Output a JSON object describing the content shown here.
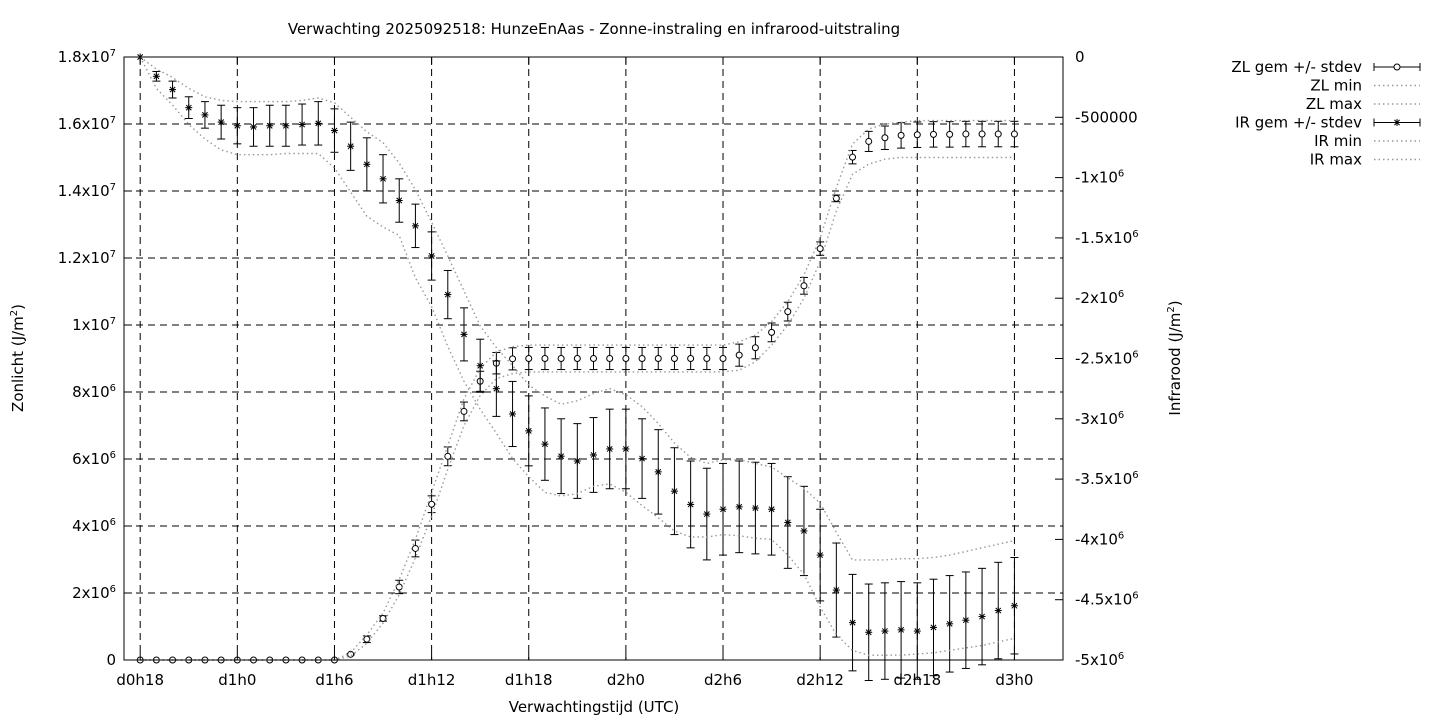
{
  "chart_data": {
    "type": "line",
    "title": "Verwachting 2025092518: HunzeEnAas - Zonne-instraling en infrarood-uitstraling",
    "xlabel": "Verwachtingstijd (UTC)",
    "ylabel": "Zonlicht (J/m",
    "ylabel_sup": "2",
    "ylabel_end": ")",
    "y2label": "Infrarood (J/m",
    "y2label_sup": "2",
    "y2label_end": ")",
    "x_hours": [
      18,
      19,
      20,
      21,
      22,
      23,
      24,
      25,
      26,
      27,
      28,
      29,
      30,
      31,
      32,
      33,
      34,
      35,
      36,
      37,
      38,
      39,
      40,
      41,
      42,
      43,
      44,
      45,
      46,
      47,
      48,
      49,
      50,
      51,
      52,
      53,
      54,
      55,
      56,
      57,
      58,
      59,
      60,
      61,
      62,
      63,
      64,
      65,
      66,
      67,
      68,
      69,
      70,
      71,
      72
    ],
    "xlim": [
      17,
      75
    ],
    "xticks": [
      {
        "value": 18,
        "label": "d0h18"
      },
      {
        "value": 24,
        "label": "d1h0"
      },
      {
        "value": 30,
        "label": "d1h6"
      },
      {
        "value": 36,
        "label": "d1h12"
      },
      {
        "value": 42,
        "label": "d1h18"
      },
      {
        "value": 48,
        "label": "d2h0"
      },
      {
        "value": 54,
        "label": "d2h6"
      },
      {
        "value": 60,
        "label": "d2h12"
      },
      {
        "value": 66,
        "label": "d2h18"
      },
      {
        "value": 72,
        "label": "d3h0"
      }
    ],
    "ylim": [
      0,
      18000000
    ],
    "yticks": [
      {
        "value": 0,
        "mant": "0",
        "sup": ""
      },
      {
        "value": 2000000,
        "mant": "2x10",
        "sup": "6"
      },
      {
        "value": 4000000,
        "mant": "4x10",
        "sup": "6"
      },
      {
        "value": 6000000,
        "mant": "6x10",
        "sup": "6"
      },
      {
        "value": 8000000,
        "mant": "8x10",
        "sup": "6"
      },
      {
        "value": 10000000,
        "mant": "1x10",
        "sup": "7"
      },
      {
        "value": 12000000,
        "mant": "1.2x10",
        "sup": "7"
      },
      {
        "value": 14000000,
        "mant": "1.4x10",
        "sup": "7"
      },
      {
        "value": 16000000,
        "mant": "1.6x10",
        "sup": "7"
      },
      {
        "value": 18000000,
        "mant": "1.8x10",
        "sup": "7"
      }
    ],
    "y2lim": [
      -5000000,
      0
    ],
    "y2ticks": [
      {
        "value": 0,
        "mant": "0",
        "sup": ""
      },
      {
        "value": -500000,
        "mant": "-500000",
        "sup": ""
      },
      {
        "value": -1000000,
        "mant": "-1x10",
        "sup": "6"
      },
      {
        "value": -1500000,
        "mant": "-1.5x10",
        "sup": "6"
      },
      {
        "value": -2000000,
        "mant": "-2x10",
        "sup": "6"
      },
      {
        "value": -2500000,
        "mant": "-2.5x10",
        "sup": "6"
      },
      {
        "value": -3000000,
        "mant": "-3x10",
        "sup": "6"
      },
      {
        "value": -3500000,
        "mant": "-3.5x10",
        "sup": "6"
      },
      {
        "value": -4000000,
        "mant": "-4x10",
        "sup": "6"
      },
      {
        "value": -4500000,
        "mant": "-4.5x10",
        "sup": "6"
      },
      {
        "value": -5000000,
        "mant": "-5x10",
        "sup": "6"
      }
    ],
    "grid": true,
    "legend_position": "top-right outside",
    "series": [
      {
        "name": "ZL gem +/- stdev",
        "axis": "y1",
        "style": "errorbars-circle",
        "mean": [
          0,
          0,
          0,
          0,
          0,
          0,
          0,
          0,
          0,
          0,
          0,
          0,
          0,
          170000,
          620000,
          1240000,
          2180000,
          3330000,
          4650000,
          6080000,
          7420000,
          8320000,
          8860000,
          8990000,
          9000000,
          9000000,
          9000000,
          9000000,
          9000000,
          9000000,
          9000000,
          9000000,
          9000000,
          9000000,
          9000000,
          9000000,
          9000000,
          9100000,
          9320000,
          9780000,
          10400000,
          11170000,
          12280000,
          13780000,
          15010000,
          15480000,
          15590000,
          15660000,
          15680000,
          15690000,
          15690000,
          15700000,
          15700000,
          15700000,
          15700000
        ],
        "stdev": [
          0,
          0,
          0,
          0,
          0,
          0,
          0,
          0,
          0,
          0,
          0,
          0,
          0,
          20000,
          100000,
          80000,
          200000,
          250000,
          250000,
          280000,
          280000,
          300000,
          320000,
          330000,
          330000,
          330000,
          330000,
          330000,
          330000,
          330000,
          330000,
          330000,
          330000,
          330000,
          330000,
          330000,
          330000,
          330000,
          330000,
          280000,
          280000,
          250000,
          200000,
          100000,
          200000,
          300000,
          350000,
          380000,
          380000,
          380000,
          380000,
          380000,
          380000,
          380000,
          380000
        ]
      },
      {
        "name": "ZL min",
        "axis": "y1",
        "style": "dotted",
        "values": [
          0,
          0,
          0,
          0,
          0,
          0,
          0,
          0,
          0,
          0,
          0,
          0,
          0,
          120000,
          500000,
          1100000,
          1950000,
          3050000,
          4300000,
          5700000,
          7000000,
          7900000,
          8400000,
          8550000,
          8600000,
          8600000,
          8600000,
          8600000,
          8600000,
          8600000,
          8600000,
          8600000,
          8600000,
          8600000,
          8600000,
          8600000,
          8600000,
          8650000,
          8900000,
          9400000,
          10000000,
          10800000,
          11900000,
          13400000,
          14500000,
          14800000,
          14950000,
          15000000,
          15000000,
          15000000,
          15000000,
          15000000,
          15000000,
          15000000,
          15000000
        ]
      },
      {
        "name": "ZL max",
        "axis": "y1",
        "style": "dotted",
        "values": [
          0,
          0,
          0,
          0,
          0,
          0,
          0,
          0,
          0,
          0,
          0,
          0,
          0,
          220000,
          750000,
          1400000,
          2400000,
          3600000,
          5000000,
          6400000,
          7800000,
          8700000,
          9200000,
          9350000,
          9400000,
          9400000,
          9400000,
          9400000,
          9400000,
          9400000,
          9400000,
          9400000,
          9400000,
          9400000,
          9400000,
          9400000,
          9400000,
          9500000,
          9700000,
          10100000,
          10700000,
          11500000,
          12600000,
          14100000,
          15400000,
          15850000,
          16000000,
          16050000,
          16100000,
          16100000,
          16100000,
          16100000,
          16100000,
          16100000,
          16100000
        ]
      },
      {
        "name": "IR gem +/- stdev",
        "axis": "y2",
        "style": "errorbars-star",
        "mean": [
          0,
          -160000,
          -270000,
          -420000,
          -480000,
          -540000,
          -570000,
          -580000,
          -570000,
          -570000,
          -560000,
          -550000,
          -610000,
          -740000,
          -890000,
          -1010000,
          -1190000,
          -1400000,
          -1650000,
          -1970000,
          -2300000,
          -2560000,
          -2750000,
          -2960000,
          -3100000,
          -3210000,
          -3310000,
          -3350000,
          -3300000,
          -3250000,
          -3250000,
          -3330000,
          -3440000,
          -3600000,
          -3710000,
          -3790000,
          -3750000,
          -3730000,
          -3740000,
          -3750000,
          -3860000,
          -3930000,
          -4130000,
          -4420000,
          -4690000,
          -4770000,
          -4760000,
          -4750000,
          -4760000,
          -4730000,
          -4700000,
          -4670000,
          -4640000,
          -4590000,
          -4550000
        ],
        "stdev": [
          0,
          40000,
          70000,
          90000,
          110000,
          140000,
          150000,
          160000,
          170000,
          170000,
          170000,
          180000,
          180000,
          200000,
          220000,
          200000,
          180000,
          180000,
          200000,
          200000,
          220000,
          220000,
          230000,
          270000,
          290000,
          300000,
          310000,
          310000,
          310000,
          330000,
          330000,
          330000,
          350000,
          360000,
          360000,
          380000,
          380000,
          380000,
          380000,
          380000,
          380000,
          370000,
          380000,
          390000,
          400000,
          400000,
          400000,
          400000,
          400000,
          400000,
          400000,
          400000,
          400000,
          400000,
          400000
        ]
      },
      {
        "name": "IR min",
        "axis": "y2",
        "style": "dotted",
        "values": [
          0,
          -260000,
          -400000,
          -560000,
          -680000,
          -770000,
          -810000,
          -810000,
          -810000,
          -800000,
          -800000,
          -800000,
          -920000,
          -1120000,
          -1320000,
          -1410000,
          -1480000,
          -1830000,
          -2070000,
          -2400000,
          -2690000,
          -2920000,
          -3120000,
          -3330000,
          -3480000,
          -3610000,
          -3640000,
          -3620000,
          -3560000,
          -3540000,
          -3610000,
          -3720000,
          -3820000,
          -3930000,
          -3980000,
          -3980000,
          -3960000,
          -3970000,
          -3990000,
          -4000000,
          -4130000,
          -4290000,
          -4560000,
          -4790000,
          -4920000,
          -4960000,
          -4960000,
          -4960000,
          -4950000,
          -4940000,
          -4920000,
          -4900000,
          -4880000,
          -4850000,
          -4820000
        ]
      },
      {
        "name": "IR max",
        "axis": "y2",
        "style": "dotted",
        "values": [
          0,
          -100000,
          -170000,
          -260000,
          -330000,
          -360000,
          -370000,
          -370000,
          -370000,
          -370000,
          -360000,
          -340000,
          -380000,
          -500000,
          -620000,
          -710000,
          -880000,
          -1100000,
          -1370000,
          -1650000,
          -1940000,
          -2230000,
          -2410000,
          -2560000,
          -2720000,
          -2810000,
          -2880000,
          -2850000,
          -2790000,
          -2750000,
          -2800000,
          -2900000,
          -3040000,
          -3200000,
          -3320000,
          -3370000,
          -3340000,
          -3340000,
          -3370000,
          -3400000,
          -3490000,
          -3580000,
          -3700000,
          -3940000,
          -4170000,
          -4170000,
          -4170000,
          -4160000,
          -4160000,
          -4150000,
          -4130000,
          -4100000,
          -4070000,
          -4040000,
          -4010000
        ]
      }
    ]
  }
}
